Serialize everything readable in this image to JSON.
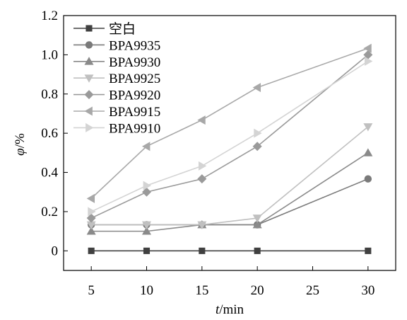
{
  "chart_data": {
    "type": "line",
    "xlabel_var": "t",
    "xlabel_unit": "/min",
    "ylabel_var": "φ",
    "ylabel_unit": "/%",
    "x": [
      5,
      10,
      15,
      20,
      30
    ],
    "xlim": [
      2.5,
      32.5
    ],
    "ylim": [
      -0.1,
      1.2
    ],
    "xticks": [
      5,
      10,
      15,
      20,
      25,
      30
    ],
    "yticks": [
      0,
      0.2,
      0.4,
      0.6,
      0.8,
      1.0,
      1.2
    ],
    "ytick_labels": [
      "0",
      "0.2",
      "0.4",
      "0.6",
      "0.8",
      "1.0",
      "1.2"
    ],
    "xtick_labels": [
      "5",
      "10",
      "15",
      "20",
      "25",
      "30"
    ],
    "grid": false,
    "legend_position": "top-left",
    "series": [
      {
        "name": "空白",
        "color": "#404040",
        "marker": "square",
        "values": [
          0,
          0,
          0,
          0,
          0
        ]
      },
      {
        "name": "BPA9935",
        "color": "#7a7a7a",
        "marker": "circle",
        "values": [
          0.133,
          0.133,
          0.133,
          0.133,
          0.367
        ]
      },
      {
        "name": "BPA9930",
        "color": "#8a8a8a",
        "marker": "triangle-up",
        "values": [
          0.1,
          0.1,
          0.133,
          0.133,
          0.5
        ]
      },
      {
        "name": "BPA9925",
        "color": "#c0c0c0",
        "marker": "triangle-down",
        "values": [
          0.133,
          0.133,
          0.133,
          0.167,
          0.633
        ]
      },
      {
        "name": "BPA9920",
        "color": "#9a9a9a",
        "marker": "diamond",
        "values": [
          0.167,
          0.3,
          0.367,
          0.533,
          1.0
        ]
      },
      {
        "name": "BPA9915",
        "color": "#a8a8a8",
        "marker": "triangle-left",
        "values": [
          0.267,
          0.533,
          0.667,
          0.833,
          1.033
        ]
      },
      {
        "name": "BPA9910",
        "color": "#d4d4d4",
        "marker": "triangle-right",
        "values": [
          0.2,
          0.333,
          0.433,
          0.6,
          0.967
        ]
      }
    ]
  }
}
